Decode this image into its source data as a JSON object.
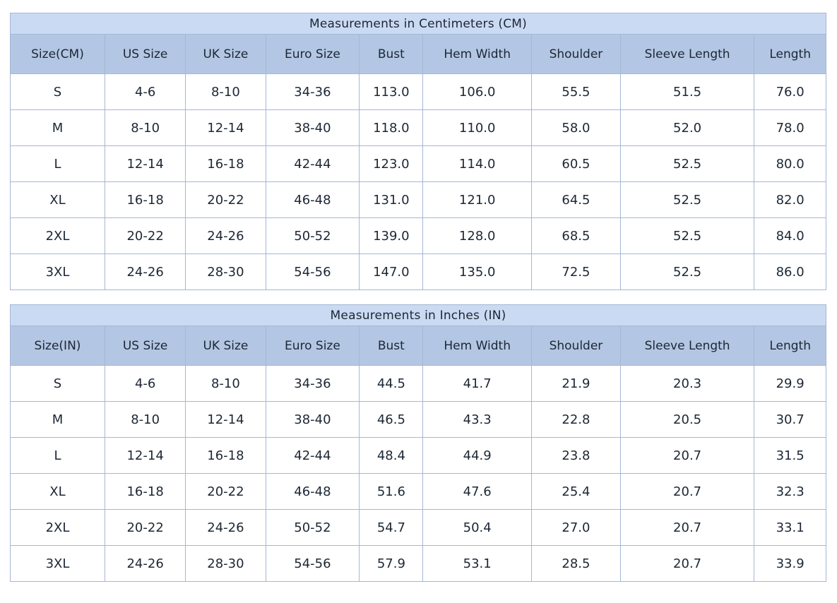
{
  "page": {
    "colors": {
      "title_row_background": "#cbdaf3",
      "header_row_background": "#b3c6e3",
      "data_row_background": "#ffffff",
      "border": "#a4b7d5",
      "text": "#1c2734"
    }
  },
  "tables": [
    {
      "title": "Measurements in Centimeters (CM)",
      "headers": [
        "Size(CM)",
        "US Size",
        "UK Size",
        "Euro Size",
        "Bust",
        "Hem Width",
        "Shoulder",
        "Sleeve Length",
        "Length"
      ],
      "rows": [
        [
          "S",
          "4-6",
          "8-10",
          "34-36",
          "113.0",
          "106.0",
          "55.5",
          "51.5",
          "76.0"
        ],
        [
          "M",
          "8-10",
          "12-14",
          "38-40",
          "118.0",
          "110.0",
          "58.0",
          "52.0",
          "78.0"
        ],
        [
          "L",
          "12-14",
          "16-18",
          "42-44",
          "123.0",
          "114.0",
          "60.5",
          "52.5",
          "80.0"
        ],
        [
          "XL",
          "16-18",
          "20-22",
          "46-48",
          "131.0",
          "121.0",
          "64.5",
          "52.5",
          "82.0"
        ],
        [
          "2XL",
          "20-22",
          "24-26",
          "50-52",
          "139.0",
          "128.0",
          "68.5",
          "52.5",
          "84.0"
        ],
        [
          "3XL",
          "24-26",
          "28-30",
          "54-56",
          "147.0",
          "135.0",
          "72.5",
          "52.5",
          "86.0"
        ]
      ]
    },
    {
      "title": "Measurements in Inches (IN)",
      "headers": [
        "Size(IN)",
        "US Size",
        "UK Size",
        "Euro Size",
        "Bust",
        "Hem Width",
        "Shoulder",
        "Sleeve Length",
        "Length"
      ],
      "rows": [
        [
          "S",
          "4-6",
          "8-10",
          "34-36",
          "44.5",
          "41.7",
          "21.9",
          "20.3",
          "29.9"
        ],
        [
          "M",
          "8-10",
          "12-14",
          "38-40",
          "46.5",
          "43.3",
          "22.8",
          "20.5",
          "30.7"
        ],
        [
          "L",
          "12-14",
          "16-18",
          "42-44",
          "48.4",
          "44.9",
          "23.8",
          "20.7",
          "31.5"
        ],
        [
          "XL",
          "16-18",
          "20-22",
          "46-48",
          "51.6",
          "47.6",
          "25.4",
          "20.7",
          "32.3"
        ],
        [
          "2XL",
          "20-22",
          "24-26",
          "50-52",
          "54.7",
          "50.4",
          "27.0",
          "20.7",
          "33.1"
        ],
        [
          "3XL",
          "24-26",
          "28-30",
          "54-56",
          "57.9",
          "53.1",
          "28.5",
          "20.7",
          "33.9"
        ]
      ]
    }
  ]
}
